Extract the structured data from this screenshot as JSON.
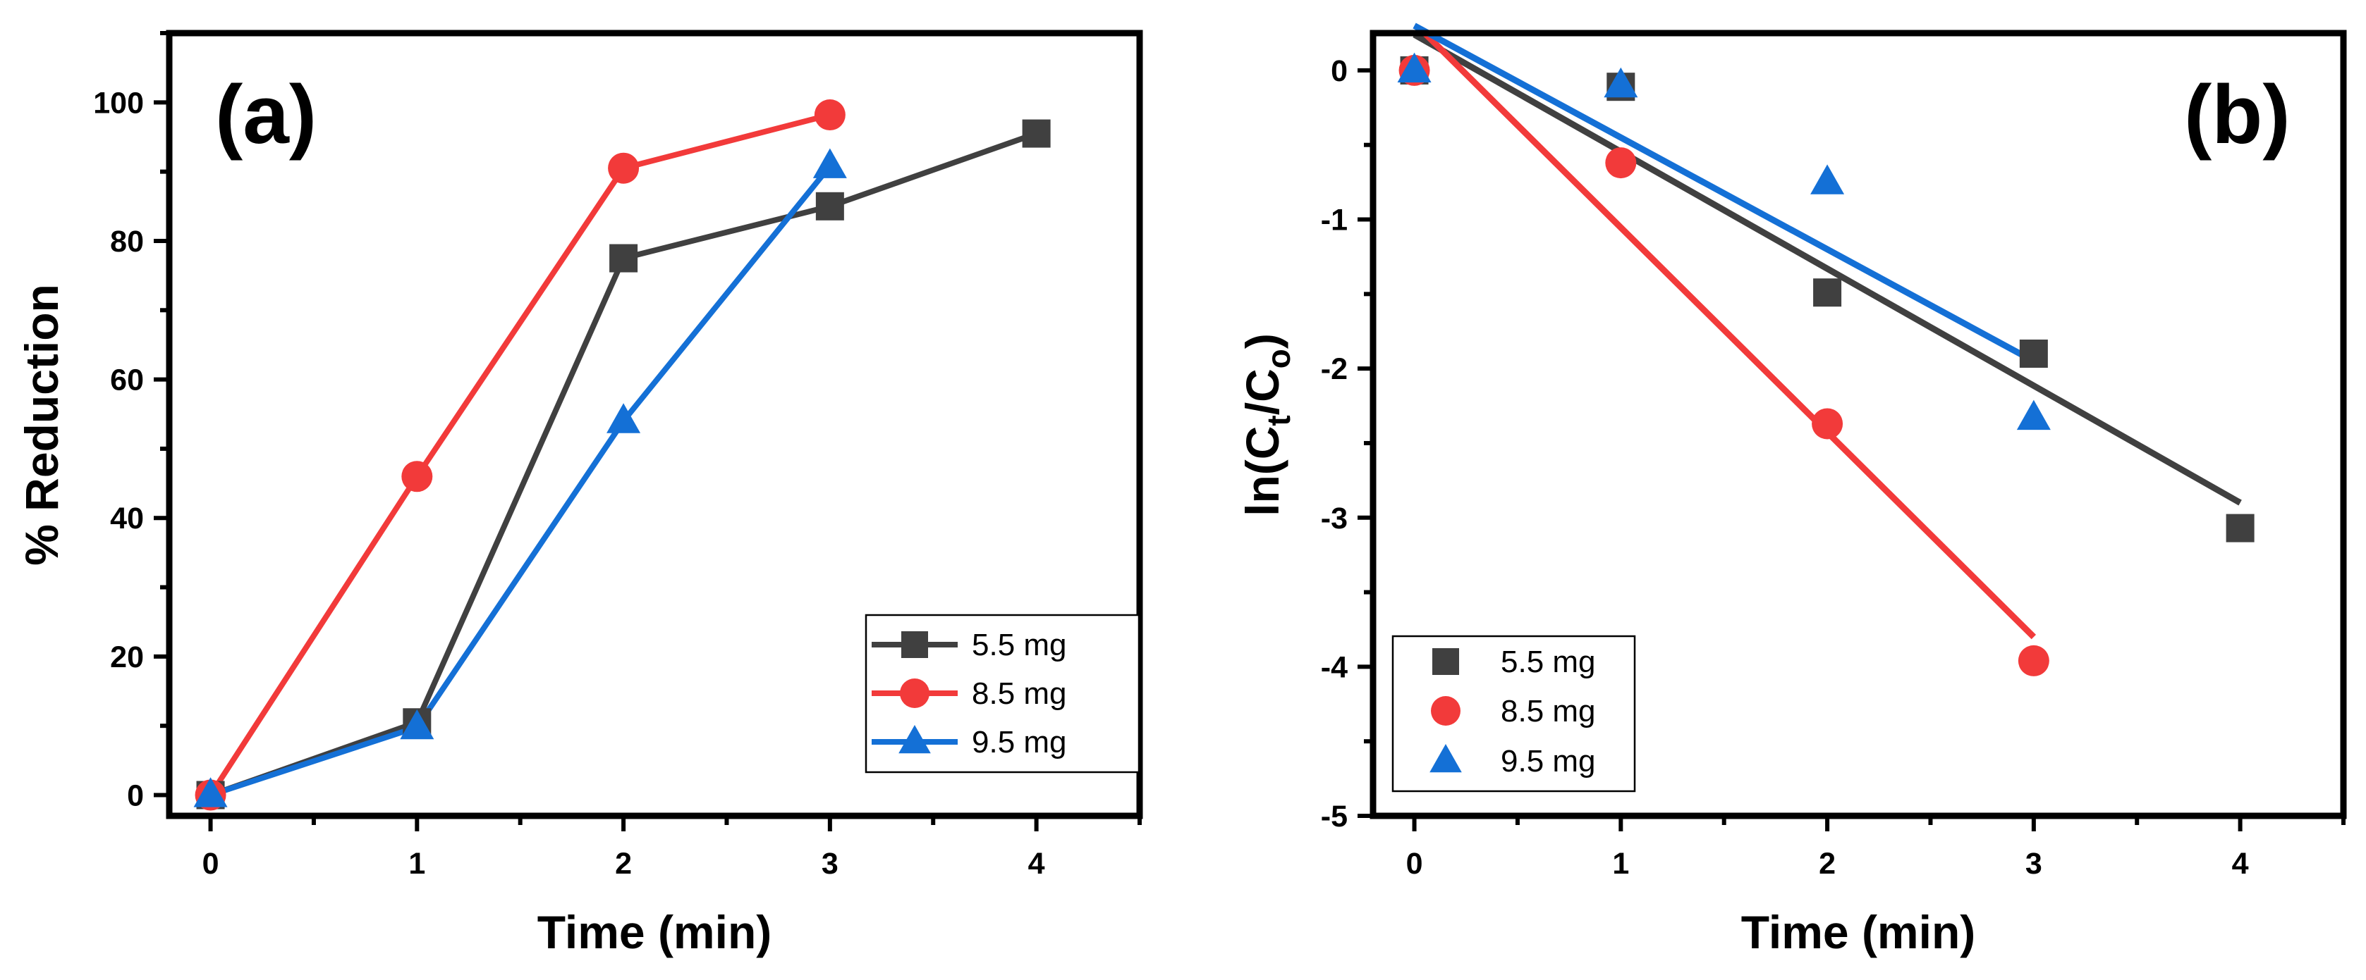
{
  "chart_data": [
    {
      "type": "line",
      "panel_label": "(a)",
      "title": "",
      "xlabel": "Time (min)",
      "ylabel": "% Reduction",
      "xlim": [
        -0.2,
        4.5
      ],
      "ylim": [
        -3,
        110
      ],
      "xticks": [
        "0",
        "1",
        "2",
        "3",
        "4"
      ],
      "xtick_values": [
        0,
        1,
        2,
        3,
        4
      ],
      "yticks": [
        "0",
        "20",
        "40",
        "60",
        "80",
        "100"
      ],
      "ytick_values": [
        0,
        20,
        40,
        60,
        80,
        100
      ],
      "grid": false,
      "legend_position": "bottom-right",
      "series": [
        {
          "name": "5.5 mg",
          "color": "#404040",
          "marker": "square",
          "x": [
            0,
            1,
            2,
            3,
            4
          ],
          "y": [
            0,
            10.5,
            77.5,
            85,
            95.5
          ]
        },
        {
          "name": "8.5 mg",
          "color": "#f23a3a",
          "marker": "circle",
          "x": [
            0,
            1,
            2,
            3
          ],
          "y": [
            0,
            46,
            90.5,
            98.2
          ]
        },
        {
          "name": "9.5 mg",
          "color": "#1470d6",
          "marker": "triangle",
          "x": [
            0,
            1,
            2,
            3
          ],
          "y": [
            0,
            9.8,
            54,
            90.8
          ]
        }
      ]
    },
    {
      "type": "scatter",
      "panel_label": "(b)",
      "title": "",
      "xlabel": "Time (min)",
      "ylabel_main": "ln(C",
      "ylabel_sub1": "t",
      "ylabel_mid": "/C",
      "ylabel_sub2": "o",
      "ylabel_end": ")",
      "xlim": [
        -0.2,
        4.5
      ],
      "ylim": [
        -5,
        0.25
      ],
      "xticks": [
        "0",
        "1",
        "2",
        "3",
        "4"
      ],
      "xtick_values": [
        0,
        1,
        2,
        3,
        4
      ],
      "yticks": [
        "0",
        "-1",
        "-2",
        "-3",
        "-4",
        "-5"
      ],
      "ytick_values": [
        0,
        -1,
        -2,
        -3,
        -4,
        -5
      ],
      "grid": false,
      "legend_position": "bottom-left",
      "series": [
        {
          "name": "5.5 mg",
          "color": "#404040",
          "fit_color": "#404040",
          "marker": "square",
          "x": [
            0,
            1,
            2,
            3,
            4
          ],
          "y": [
            0,
            -0.11,
            -1.49,
            -1.9,
            -3.07
          ],
          "fit": {
            "x": [
              0,
              4
            ],
            "y": [
              0.24,
              -2.9
            ]
          }
        },
        {
          "name": "8.5 mg",
          "color": "#f23a3a",
          "fit_color": "#f23a3a",
          "marker": "circle",
          "x": [
            0,
            1,
            2,
            3
          ],
          "y": [
            0,
            -0.62,
            -2.37,
            -3.96
          ],
          "fit": {
            "x": [
              0.05,
              3
            ],
            "y": [
              0.25,
              -3.8
            ]
          }
        },
        {
          "name": "9.5 mg",
          "color": "#1470d6",
          "fit_color": "#1470d6",
          "marker": "triangle",
          "x": [
            0,
            1,
            2,
            3
          ],
          "y": [
            0,
            -0.1,
            -0.75,
            -2.33
          ],
          "fit": {
            "x": [
              0,
              3
            ],
            "y": [
              0.3,
              -1.95
            ]
          }
        }
      ]
    }
  ]
}
